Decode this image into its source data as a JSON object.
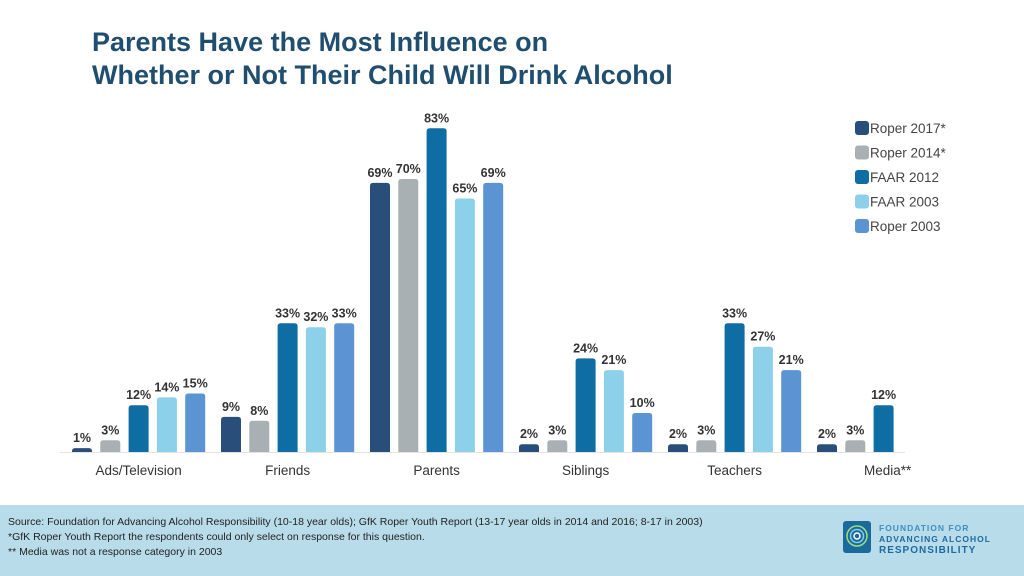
{
  "title_line1": "Parents Have the Most Influence on",
  "title_line2": "Whether or Not Their Child Will Drink Alcohol",
  "chart_data": {
    "type": "bar",
    "categories": [
      "Ads/Television",
      "Friends",
      "Parents",
      "Siblings",
      "Teachers",
      "Media**"
    ],
    "series": [
      {
        "name": "Roper 2017*",
        "color": "#2a4e7a",
        "values": [
          1,
          9,
          69,
          2,
          2,
          2
        ]
      },
      {
        "name": "Roper 2014*",
        "color": "#a9b0b3",
        "values": [
          3,
          8,
          70,
          3,
          3,
          3
        ]
      },
      {
        "name": "FAAR 2012",
        "color": "#0e6da3",
        "values": [
          12,
          33,
          83,
          24,
          33,
          12
        ]
      },
      {
        "name": "FAAR 2003",
        "color": "#8dd0ea",
        "values": [
          14,
          32,
          65,
          21,
          27,
          null
        ]
      },
      {
        "name": "Roper 2003",
        "color": "#5b93d3",
        "values": [
          15,
          33,
          69,
          10,
          21,
          null
        ]
      }
    ],
    "value_suffix": "%",
    "ylim": [
      0,
      85
    ],
    "grid": false,
    "legend": "top-right"
  },
  "footer": {
    "source": "Source:  Foundation for Advancing Alcohol Responsibility (10-18 year olds); GfK Roper Youth Report (13-17 year olds in 2014 and 2016; 8-17 in 2003)",
    "note1": "*GfK Roper Youth Report the respondents could only select on response for this question.",
    "note2": "** Media was not a response category in 2003"
  },
  "logo": {
    "line1": "FOUNDATION FOR",
    "line2": "ADVANCING ALCOHOL",
    "line3": "RESPONSIBILITY"
  }
}
